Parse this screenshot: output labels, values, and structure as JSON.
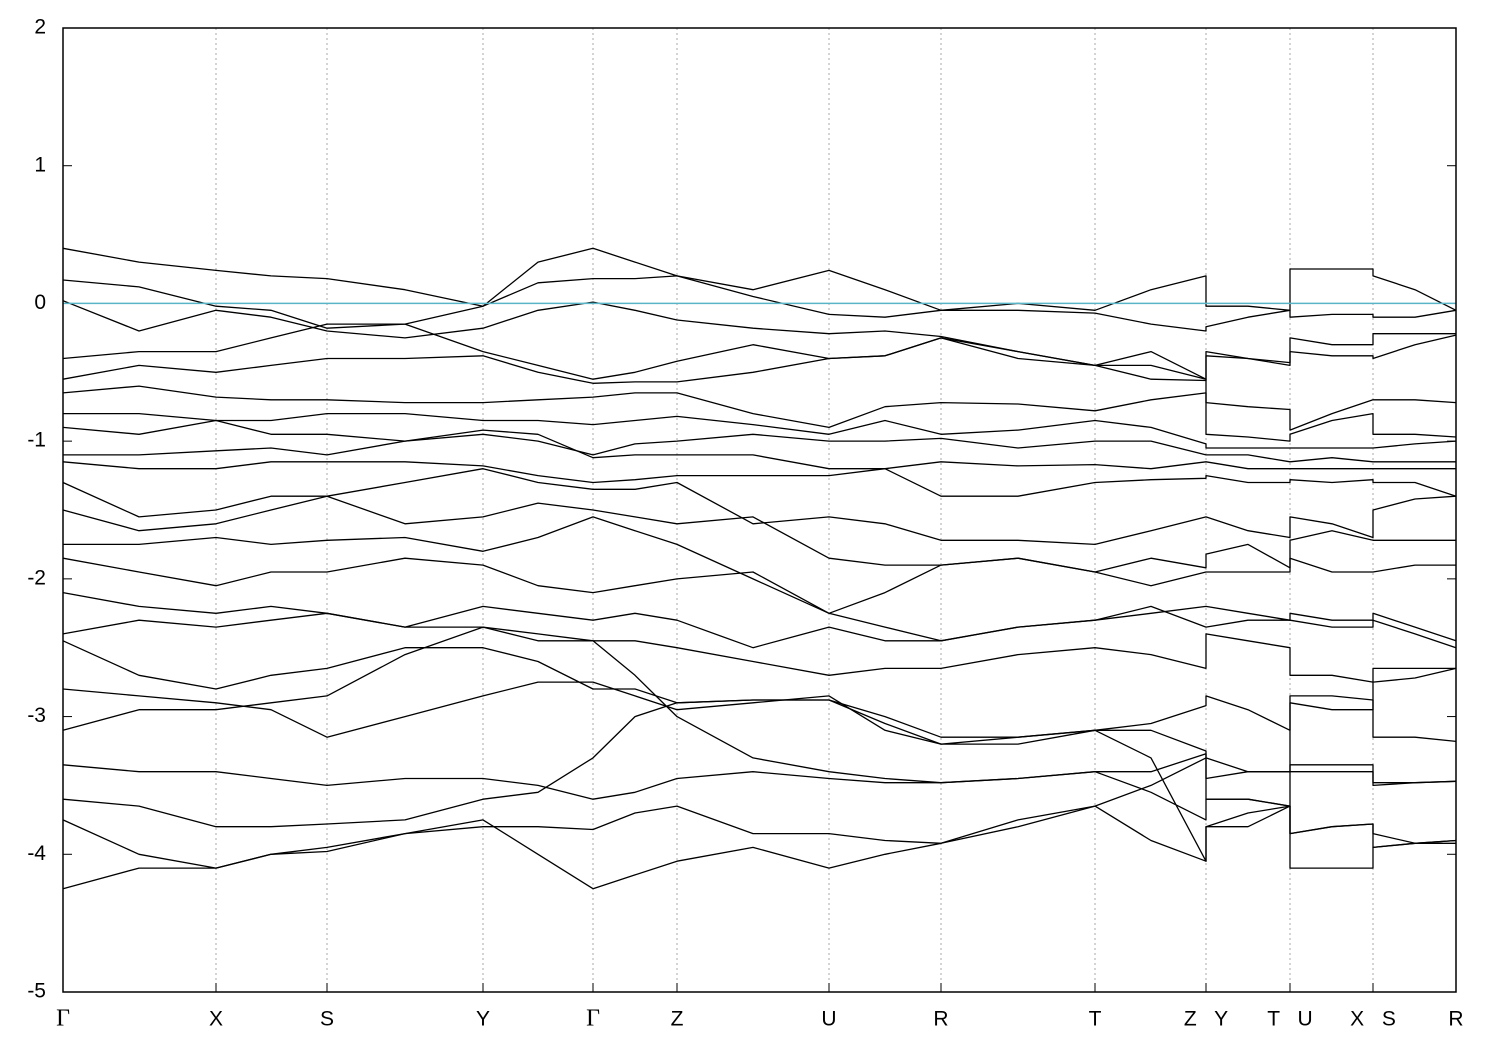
{
  "chart_data": {
    "type": "line",
    "color": "#000000",
    "reference_line": {
      "y": 0,
      "color": "#5ab4c8"
    },
    "grid": true,
    "xlim": [
      0,
      13.93
    ],
    "ylim": [
      -5,
      2
    ],
    "yticks": [
      -5,
      -4,
      -3,
      -2,
      -1,
      0,
      1,
      2
    ],
    "xticks": [
      {
        "value": 0,
        "label": "Γ"
      },
      {
        "value": 1.53,
        "label": "X"
      },
      {
        "value": 2.64,
        "label": "S"
      },
      {
        "value": 4.2,
        "label": "Y"
      },
      {
        "value": 5.3,
        "label": "Γ"
      },
      {
        "value": 6.14,
        "label": "Z"
      },
      {
        "value": 7.66,
        "label": "U"
      },
      {
        "value": 8.78,
        "label": "R"
      },
      {
        "value": 10.32,
        "label": "T"
      },
      {
        "value": 11.43,
        "label": "Z Y"
      },
      {
        "value": 12.27,
        "label": "T U"
      },
      {
        "value": 13.1,
        "label": "X S"
      },
      {
        "value": 13.93,
        "label": "R"
      }
    ],
    "x": [
      0,
      0.76,
      1.53,
      2.08,
      2.64,
      3.42,
      4.2,
      4.75,
      5.3,
      5.72,
      6.14,
      6.9,
      7.66,
      8.22,
      8.78,
      9.55,
      10.32,
      10.88,
      11.43,
      11.43,
      11.85,
      12.27,
      12.27,
      12.69,
      13.1,
      13.1,
      13.52,
      13.93
    ],
    "series": [
      {
        "values": [
          0.4,
          0.3,
          0.24,
          0.2,
          0.18,
          0.1,
          -0.02,
          0.3,
          0.4,
          0.3,
          0.2,
          0.1,
          0.24,
          0.1,
          -0.05,
          0.0,
          -0.05,
          0.1,
          0.2,
          -0.02,
          -0.02,
          -0.05,
          0.25,
          0.25,
          0.25,
          0.2,
          0.1,
          -0.05
        ]
      },
      {
        "values": [
          0.17,
          0.12,
          -0.02,
          -0.05,
          -0.18,
          -0.15,
          -0.02,
          0.15,
          0.18,
          0.18,
          0.2,
          0.05,
          -0.08,
          -0.1,
          -0.05,
          -0.05,
          -0.07,
          -0.15,
          -0.2,
          -0.17,
          -0.1,
          -0.05,
          -0.1,
          -0.08,
          -0.08,
          -0.1,
          -0.1,
          -0.05
        ]
      },
      {
        "values": [
          0.02,
          -0.2,
          -0.05,
          -0.1,
          -0.2,
          -0.25,
          -0.18,
          -0.05,
          0.01,
          -0.05,
          -0.12,
          -0.18,
          -0.22,
          -0.2,
          -0.24,
          -0.35,
          -0.45,
          -0.35,
          -0.55,
          -0.35,
          -0.4,
          -0.43,
          -0.25,
          -0.3,
          -0.3,
          -0.22,
          -0.22,
          -0.22
        ]
      },
      {
        "values": [
          -0.4,
          -0.35,
          -0.35,
          -0.25,
          -0.15,
          -0.15,
          -0.35,
          -0.45,
          -0.55,
          -0.5,
          -0.42,
          -0.3,
          -0.4,
          -0.38,
          -0.25,
          -0.4,
          -0.45,
          -0.55,
          -0.56,
          -0.38,
          -0.4,
          -0.45,
          -0.35,
          -0.38,
          -0.38,
          -0.4,
          -0.3,
          -0.23
        ]
      },
      {
        "values": [
          -0.55,
          -0.45,
          -0.5,
          -0.45,
          -0.4,
          -0.4,
          -0.38,
          -0.5,
          -0.58,
          -0.57,
          -0.57,
          -0.5,
          -0.4,
          -0.38,
          -0.25,
          -0.35,
          -0.45,
          -0.45,
          -0.55,
          -0.72,
          -0.75,
          -0.77,
          -0.92,
          -0.8,
          -0.7,
          -0.7,
          -0.7,
          -0.72
        ]
      },
      {
        "values": [
          -0.65,
          -0.6,
          -0.68,
          -0.7,
          -0.7,
          -0.72,
          -0.72,
          -0.7,
          -0.68,
          -0.65,
          -0.65,
          -0.8,
          -0.9,
          -0.75,
          -0.72,
          -0.73,
          -0.78,
          -0.7,
          -0.65,
          -0.95,
          -0.97,
          -1.0,
          -0.95,
          -0.85,
          -0.8,
          -0.95,
          -0.95,
          -0.97
        ]
      },
      {
        "values": [
          -0.8,
          -0.8,
          -0.85,
          -0.85,
          -0.8,
          -0.8,
          -0.85,
          -0.85,
          -0.88,
          -0.85,
          -0.82,
          -0.88,
          -0.95,
          -0.85,
          -0.95,
          -0.92,
          -0.85,
          -0.9,
          -1.02,
          -1.05,
          -1.05,
          -1.05,
          -1.05,
          -1.05,
          -1.05,
          -1.05,
          -1.02,
          -1.0
        ]
      },
      {
        "values": [
          -0.9,
          -0.95,
          -0.85,
          -0.95,
          -0.95,
          -1.0,
          -0.95,
          -1.0,
          -1.1,
          -1.02,
          -1.0,
          -0.95,
          -1.0,
          -1.0,
          -0.98,
          -1.05,
          -1.0,
          -1.0,
          -1.1,
          -1.1,
          -1.1,
          -1.15,
          -1.15,
          -1.12,
          -1.15,
          -1.15,
          -1.15,
          -1.15
        ]
      },
      {
        "values": [
          -1.1,
          -1.1,
          -1.07,
          -1.05,
          -1.1,
          -1.0,
          -0.92,
          -0.95,
          -1.12,
          -1.1,
          -1.1,
          -1.1,
          -1.2,
          -1.2,
          -1.15,
          -1.18,
          -1.17,
          -1.2,
          -1.15,
          -1.15,
          -1.2,
          -1.2,
          -1.2,
          -1.2,
          -1.2,
          -1.2,
          -1.2,
          -1.2
        ]
      },
      {
        "values": [
          -1.15,
          -1.2,
          -1.2,
          -1.15,
          -1.15,
          -1.15,
          -1.18,
          -1.25,
          -1.3,
          -1.28,
          -1.25,
          -1.25,
          -1.25,
          -1.2,
          -1.4,
          -1.4,
          -1.3,
          -1.28,
          -1.27,
          -1.25,
          -1.3,
          -1.3,
          -1.28,
          -1.3,
          -1.28,
          -1.3,
          -1.3,
          -1.4
        ]
      },
      {
        "values": [
          -1.3,
          -1.55,
          -1.5,
          -1.4,
          -1.4,
          -1.3,
          -1.2,
          -1.3,
          -1.35,
          -1.35,
          -1.3,
          -1.6,
          -1.55,
          -1.6,
          -1.72,
          -1.72,
          -1.75,
          -1.65,
          -1.55,
          -1.55,
          -1.65,
          -1.7,
          -1.55,
          -1.6,
          -1.7,
          -1.5,
          -1.42,
          -1.4
        ]
      },
      {
        "values": [
          -1.5,
          -1.65,
          -1.6,
          -1.5,
          -1.4,
          -1.6,
          -1.55,
          -1.45,
          -1.5,
          -1.55,
          -1.6,
          -1.55,
          -1.85,
          -1.9,
          -1.9,
          -1.85,
          -1.95,
          -1.85,
          -1.92,
          -1.82,
          -1.75,
          -1.92,
          -1.72,
          -1.65,
          -1.72,
          -1.72,
          -1.72,
          -1.72
        ]
      },
      {
        "values": [
          -1.75,
          -1.75,
          -1.7,
          -1.75,
          -1.72,
          -1.7,
          -1.8,
          -1.7,
          -1.55,
          -1.65,
          -1.75,
          -2.0,
          -2.25,
          -2.1,
          -1.9,
          -1.85,
          -1.95,
          -2.05,
          -1.95,
          -1.95,
          -1.95,
          -1.95,
          -1.85,
          -1.95,
          -1.95,
          -1.95,
          -1.9,
          -1.9
        ]
      },
      {
        "values": [
          -1.85,
          -1.95,
          -2.05,
          -1.95,
          -1.95,
          -1.85,
          -1.9,
          -2.05,
          -2.1,
          -2.05,
          -2.0,
          -1.95,
          -2.25,
          -2.35,
          -2.45,
          -2.35,
          -2.3,
          -2.25,
          -2.2,
          -2.2,
          -2.25,
          -2.3,
          -2.25,
          -2.3,
          -2.3,
          -2.25,
          -2.35,
          -2.45
        ]
      },
      {
        "values": [
          -2.1,
          -2.2,
          -2.25,
          -2.2,
          -2.25,
          -2.35,
          -2.2,
          -2.25,
          -2.3,
          -2.25,
          -2.3,
          -2.5,
          -2.35,
          -2.45,
          -2.45,
          -2.35,
          -2.3,
          -2.2,
          -2.35,
          -2.35,
          -2.3,
          -2.3,
          -2.3,
          -2.35,
          -2.35,
          -2.3,
          -2.4,
          -2.5
        ]
      },
      {
        "values": [
          -2.4,
          -2.3,
          -2.35,
          -2.3,
          -2.25,
          -2.35,
          -2.35,
          -2.4,
          -2.45,
          -2.45,
          -2.5,
          -2.6,
          -2.7,
          -2.65,
          -2.65,
          -2.55,
          -2.5,
          -2.55,
          -2.65,
          -2.4,
          -2.45,
          -2.5,
          -2.7,
          -2.7,
          -2.75,
          -2.65,
          -2.65,
          -2.65
        ]
      },
      {
        "values": [
          -2.45,
          -2.7,
          -2.8,
          -2.7,
          -2.65,
          -2.5,
          -2.5,
          -2.6,
          -2.8,
          -2.8,
          -2.9,
          -2.88,
          -2.88,
          -3.0,
          -3.15,
          -3.15,
          -3.1,
          -3.05,
          -2.92,
          -2.85,
          -2.95,
          -3.1,
          -2.9,
          -2.95,
          -2.95,
          -2.75,
          -2.72,
          -2.65
        ]
      },
      {
        "values": [
          -2.8,
          -2.85,
          -2.9,
          -2.95,
          -3.15,
          -3.0,
          -2.85,
          -2.75,
          -2.75,
          -2.85,
          -2.95,
          -2.9,
          -2.85,
          -3.1,
          -3.2,
          -3.15,
          -3.1,
          -3.1,
          -3.25,
          -3.3,
          -3.4,
          -3.4,
          -2.85,
          -2.85,
          -2.88,
          -3.15,
          -3.15,
          -3.18
        ]
      },
      {
        "values": [
          -3.1,
          -2.95,
          -2.95,
          -2.9,
          -2.85,
          -2.55,
          -2.35,
          -2.45,
          -2.45,
          -2.7,
          -3.0,
          -3.3,
          -3.4,
          -3.45,
          -3.48,
          -3.45,
          -3.4,
          -3.4,
          -3.27,
          -3.45,
          -3.4,
          -3.4,
          -3.35,
          -3.35,
          -3.35,
          -3.5,
          -3.48,
          -3.47
        ]
      },
      {
        "values": [
          -3.35,
          -3.4,
          -3.4,
          -3.45,
          -3.5,
          -3.45,
          -3.45,
          -3.5,
          -3.6,
          -3.55,
          -3.45,
          -3.4,
          -3.45,
          -3.48,
          -3.48,
          -3.45,
          -3.4,
          -3.55,
          -3.75,
          -3.6,
          -3.6,
          -3.65,
          -3.4,
          -3.4,
          -3.4,
          -3.48,
          -3.48,
          -3.47
        ]
      },
      {
        "values": [
          -3.6,
          -3.65,
          -3.8,
          -3.8,
          -3.78,
          -3.75,
          -3.6,
          -3.55,
          -3.3,
          -3.0,
          -2.9,
          -2.88,
          -2.88,
          -3.05,
          -3.2,
          -3.2,
          -3.1,
          -3.3,
          -4.05,
          -3.8,
          -3.7,
          -3.65,
          -3.85,
          -3.8,
          -3.78,
          -3.85,
          -3.92,
          -3.92
        ]
      },
      {
        "values": [
          -3.75,
          -4.0,
          -4.1,
          -4.0,
          -3.98,
          -3.85,
          -3.75,
          -4.0,
          -4.25,
          -4.15,
          -4.05,
          -3.95,
          -4.1,
          -4.0,
          -3.92,
          -3.75,
          -3.65,
          -3.9,
          -4.05,
          -3.8,
          -3.8,
          -3.65,
          -4.1,
          -4.1,
          -4.1,
          -3.95,
          -3.92,
          -3.9
        ]
      },
      {
        "values": [
          -4.25,
          -4.1,
          -4.1,
          -4.0,
          -3.95,
          -3.85,
          -3.8,
          -3.8,
          -3.82,
          -3.7,
          -3.65,
          -3.85,
          -3.85,
          -3.9,
          -3.92,
          -3.8,
          -3.65,
          -3.5,
          -3.3,
          -3.6,
          -3.6,
          -3.65,
          -3.85,
          -3.8,
          -3.78,
          -3.95,
          -3.92,
          -3.9
        ]
      }
    ]
  }
}
